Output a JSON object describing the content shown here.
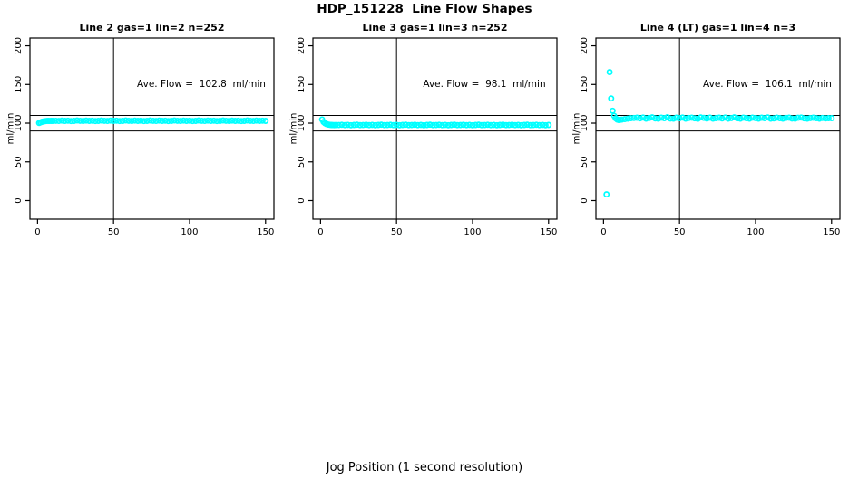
{
  "figure": {
    "title": "HDP_151228  Line Flow Shapes",
    "xlabel": "Jog Position (1 second resolution)",
    "point_color": "#00ffff",
    "axis_color": "#000000",
    "background": "#ffffff"
  },
  "chart_data": [
    {
      "type": "scatter",
      "title": "Line 2 gas=1 lin=2 n=252",
      "ylabel": "ml/min",
      "annotation": "Ave. Flow =  102.8  ml/min",
      "ave_flow_ml_min": 102.8,
      "xlim": [
        -5,
        155.5
      ],
      "ylim": [
        -24,
        210
      ],
      "xticks": [
        0,
        50,
        100,
        150
      ],
      "yticks": [
        0,
        50,
        100,
        150,
        200
      ],
      "hlines": [
        110,
        90
      ],
      "vlines": [
        50
      ],
      "grid": false,
      "points": [
        [
          1,
          100.2
        ],
        [
          2,
          101.0
        ],
        [
          3,
          101.8
        ],
        [
          4,
          102.3
        ],
        [
          5,
          102.6
        ],
        [
          6,
          102.8
        ],
        [
          7,
          102.9
        ],
        [
          8,
          102.8
        ],
        [
          9,
          103.0
        ],
        [
          10,
          102.9
        ],
        [
          12,
          103.1
        ],
        [
          14,
          102.8
        ],
        [
          16,
          103.3
        ],
        [
          18,
          102.9
        ],
        [
          20,
          103.2
        ],
        [
          22,
          102.7
        ],
        [
          24,
          103.0
        ],
        [
          26,
          103.4
        ],
        [
          28,
          103.1
        ],
        [
          30,
          102.8
        ],
        [
          32,
          103.3
        ],
        [
          34,
          102.9
        ],
        [
          36,
          103.2
        ],
        [
          38,
          102.7
        ],
        [
          40,
          103.0
        ],
        [
          42,
          103.4
        ],
        [
          44,
          103.1
        ],
        [
          46,
          102.8
        ],
        [
          48,
          103.3
        ],
        [
          50,
          102.9
        ],
        [
          52,
          103.2
        ],
        [
          54,
          102.7
        ],
        [
          56,
          103.0
        ],
        [
          58,
          103.4
        ],
        [
          60,
          103.1
        ],
        [
          62,
          102.8
        ],
        [
          64,
          103.3
        ],
        [
          66,
          102.9
        ],
        [
          68,
          103.2
        ],
        [
          70,
          102.7
        ],
        [
          72,
          103.0
        ],
        [
          74,
          103.4
        ],
        [
          76,
          103.1
        ],
        [
          78,
          102.8
        ],
        [
          80,
          103.3
        ],
        [
          82,
          102.9
        ],
        [
          84,
          103.2
        ],
        [
          86,
          102.7
        ],
        [
          88,
          103.0
        ],
        [
          90,
          103.4
        ],
        [
          92,
          103.1
        ],
        [
          94,
          102.8
        ],
        [
          96,
          103.3
        ],
        [
          98,
          102.9
        ],
        [
          100,
          103.2
        ],
        [
          102,
          102.7
        ],
        [
          104,
          103.0
        ],
        [
          106,
          103.4
        ],
        [
          108,
          103.1
        ],
        [
          110,
          102.8
        ],
        [
          112,
          103.3
        ],
        [
          114,
          102.9
        ],
        [
          116,
          103.2
        ],
        [
          118,
          102.7
        ],
        [
          120,
          103.0
        ],
        [
          122,
          103.4
        ],
        [
          124,
          103.1
        ],
        [
          126,
          102.8
        ],
        [
          128,
          103.3
        ],
        [
          130,
          102.9
        ],
        [
          132,
          103.2
        ],
        [
          134,
          102.7
        ],
        [
          136,
          103.0
        ],
        [
          138,
          103.4
        ],
        [
          140,
          103.1
        ],
        [
          142,
          102.8
        ],
        [
          144,
          103.3
        ],
        [
          146,
          102.9
        ],
        [
          148,
          103.2
        ],
        [
          150,
          103.0
        ]
      ]
    },
    {
      "type": "scatter",
      "title": "Line 3 gas=1 lin=3 n=252",
      "ylabel": "ml/min",
      "annotation": "Ave. Flow =  98.1  ml/min",
      "ave_flow_ml_min": 98.1,
      "xlim": [
        -5,
        155.5
      ],
      "ylim": [
        -24,
        210
      ],
      "xticks": [
        0,
        50,
        100,
        150
      ],
      "yticks": [
        0,
        50,
        100,
        150,
        200
      ],
      "hlines": [
        110,
        90
      ],
      "vlines": [
        50
      ],
      "grid": false,
      "points": [
        [
          1,
          104.8
        ],
        [
          2,
          101.5
        ],
        [
          3,
          99.8
        ],
        [
          4,
          98.8
        ],
        [
          5,
          98.2
        ],
        [
          6,
          97.9
        ],
        [
          7,
          97.7
        ],
        [
          8,
          97.6
        ],
        [
          9,
          97.5
        ],
        [
          10,
          97.6
        ],
        [
          12,
          97.6
        ],
        [
          14,
          97.9
        ],
        [
          16,
          97.4
        ],
        [
          18,
          97.8
        ],
        [
          20,
          97.3
        ],
        [
          22,
          97.7
        ],
        [
          24,
          98.0
        ],
        [
          26,
          97.5
        ],
        [
          28,
          97.6
        ],
        [
          30,
          97.9
        ],
        [
          32,
          97.4
        ],
        [
          34,
          97.8
        ],
        [
          36,
          97.3
        ],
        [
          38,
          97.7
        ],
        [
          40,
          98.0
        ],
        [
          42,
          97.5
        ],
        [
          44,
          97.6
        ],
        [
          46,
          97.9
        ],
        [
          48,
          97.4
        ],
        [
          50,
          97.8
        ],
        [
          52,
          97.3
        ],
        [
          54,
          97.7
        ],
        [
          56,
          98.0
        ],
        [
          58,
          97.5
        ],
        [
          60,
          97.6
        ],
        [
          62,
          97.9
        ],
        [
          64,
          97.4
        ],
        [
          66,
          97.8
        ],
        [
          68,
          97.3
        ],
        [
          70,
          97.7
        ],
        [
          72,
          98.0
        ],
        [
          74,
          97.5
        ],
        [
          76,
          97.6
        ],
        [
          78,
          97.9
        ],
        [
          80,
          97.4
        ],
        [
          82,
          97.8
        ],
        [
          84,
          97.3
        ],
        [
          86,
          97.7
        ],
        [
          88,
          98.0
        ],
        [
          90,
          97.5
        ],
        [
          92,
          97.6
        ],
        [
          94,
          97.9
        ],
        [
          96,
          97.4
        ],
        [
          98,
          97.8
        ],
        [
          100,
          97.3
        ],
        [
          102,
          97.7
        ],
        [
          104,
          98.0
        ],
        [
          106,
          97.5
        ],
        [
          108,
          97.6
        ],
        [
          110,
          97.9
        ],
        [
          112,
          97.4
        ],
        [
          114,
          97.8
        ],
        [
          116,
          97.3
        ],
        [
          118,
          97.7
        ],
        [
          120,
          98.0
        ],
        [
          122,
          97.5
        ],
        [
          124,
          97.6
        ],
        [
          126,
          97.9
        ],
        [
          128,
          97.4
        ],
        [
          130,
          97.8
        ],
        [
          132,
          97.3
        ],
        [
          134,
          97.7
        ],
        [
          136,
          98.0
        ],
        [
          138,
          97.5
        ],
        [
          140,
          97.6
        ],
        [
          142,
          97.9
        ],
        [
          144,
          97.4
        ],
        [
          146,
          97.8
        ],
        [
          148,
          97.3
        ],
        [
          150,
          97.7
        ]
      ]
    },
    {
      "type": "scatter",
      "title": "Line 4 (LT) gas=1 lin=4 n=3",
      "ylabel": "ml/min",
      "annotation": "Ave. Flow =  106.1  ml/min",
      "ave_flow_ml_min": 106.1,
      "xlim": [
        -5,
        155.5
      ],
      "ylim": [
        -24,
        210
      ],
      "xticks": [
        0,
        50,
        100,
        150
      ],
      "yticks": [
        0,
        50,
        100,
        150,
        200
      ],
      "hlines": [
        110,
        90
      ],
      "vlines": [
        50
      ],
      "grid": false,
      "points": [
        [
          2,
          8
        ],
        [
          4,
          166
        ],
        [
          5,
          132
        ],
        [
          6,
          116
        ],
        [
          7,
          109.5
        ],
        [
          8,
          106.2
        ],
        [
          9,
          104.6
        ],
        [
          10,
          104.0
        ],
        [
          11,
          104.3
        ],
        [
          12,
          104.6
        ],
        [
          14,
          105.2
        ],
        [
          16,
          105.8
        ],
        [
          18,
          106.3
        ],
        [
          20,
          106.7
        ],
        [
          22,
          107.0
        ],
        [
          24,
          106.2
        ],
        [
          26,
          107.3
        ],
        [
          28,
          105.9
        ],
        [
          30,
          106.7
        ],
        [
          32,
          107.5
        ],
        [
          34,
          106.1
        ],
        [
          36,
          105.7
        ],
        [
          38,
          107.2
        ],
        [
          40,
          106.5
        ],
        [
          42,
          107.7
        ],
        [
          44,
          106.0
        ],
        [
          46,
          105.8
        ],
        [
          48,
          107.0
        ],
        [
          50,
          106.4
        ],
        [
          52,
          107.3
        ],
        [
          54,
          105.9
        ],
        [
          56,
          106.7
        ],
        [
          58,
          107.1
        ],
        [
          60,
          106.2
        ],
        [
          62,
          105.6
        ],
        [
          64,
          107.4
        ],
        [
          66,
          106.8
        ],
        [
          68,
          106.0
        ],
        [
          70,
          107.2
        ],
        [
          72,
          105.8
        ],
        [
          74,
          106.5
        ],
        [
          76,
          107.0
        ],
        [
          78,
          106.1
        ],
        [
          80,
          107.3
        ],
        [
          82,
          105.9
        ],
        [
          84,
          106.6
        ],
        [
          86,
          107.5
        ],
        [
          88,
          106.2
        ],
        [
          90,
          105.8
        ],
        [
          92,
          107.1
        ],
        [
          94,
          106.4
        ],
        [
          96,
          105.7
        ],
        [
          98,
          107.2
        ],
        [
          100,
          106.6
        ],
        [
          102,
          105.9
        ],
        [
          104,
          107.0
        ],
        [
          106,
          106.3
        ],
        [
          108,
          107.4
        ],
        [
          110,
          105.8
        ],
        [
          112,
          106.1
        ],
        [
          114,
          107.2
        ],
        [
          116,
          106.5
        ],
        [
          118,
          105.9
        ],
        [
          120,
          106.8
        ],
        [
          122,
          107.1
        ],
        [
          124,
          106.0
        ],
        [
          126,
          105.7
        ],
        [
          128,
          106.9
        ],
        [
          130,
          107.3
        ],
        [
          132,
          106.2
        ],
        [
          134,
          105.8
        ],
        [
          136,
          106.6
        ],
        [
          138,
          107.0
        ],
        [
          140,
          106.3
        ],
        [
          142,
          105.9
        ],
        [
          144,
          106.7
        ],
        [
          146,
          106.1
        ],
        [
          148,
          106.4
        ],
        [
          150,
          106.5
        ]
      ]
    }
  ]
}
